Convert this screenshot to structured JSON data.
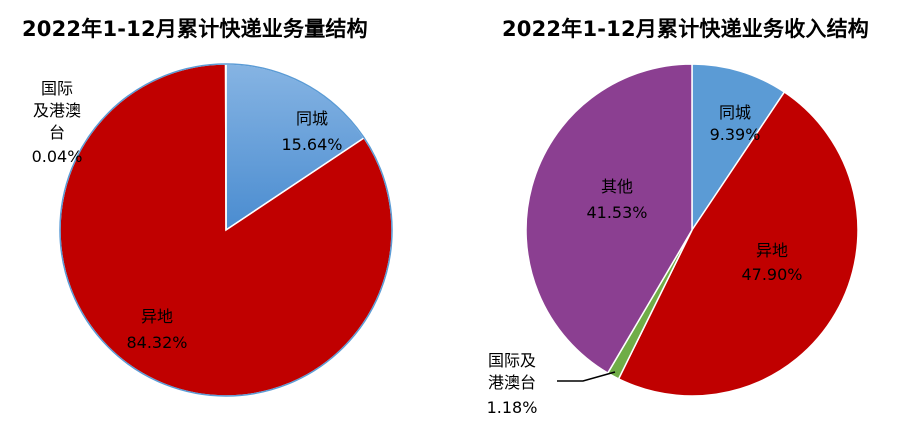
{
  "chart_data": [
    {
      "type": "pie",
      "title": "2022年1-12月累计快递业务量结构",
      "slices": [
        {
          "name": "同城",
          "value": 15.64,
          "label": "15.64%",
          "color": "#5b9bd5"
        },
        {
          "name": "异地",
          "value": 84.32,
          "label": "84.32%",
          "color": "#c00000"
        },
        {
          "name": "国际及港澳台",
          "value": 0.04,
          "label": "0.04%",
          "color": "#70ad47"
        }
      ]
    },
    {
      "type": "pie",
      "title": "2022年1-12月累计快递业务收入结构",
      "slices": [
        {
          "name": "同城",
          "value": 9.39,
          "label": "9.39%",
          "color": "#5b9bd5"
        },
        {
          "name": "异地",
          "value": 47.9,
          "label": "47.90%",
          "color": "#c00000"
        },
        {
          "name": "国际及港澳台",
          "value": 1.18,
          "label": "1.18%",
          "color": "#70ad47"
        },
        {
          "name": "其他",
          "value": 41.53,
          "label": "41.53%",
          "color": "#8b3f91"
        }
      ]
    }
  ]
}
